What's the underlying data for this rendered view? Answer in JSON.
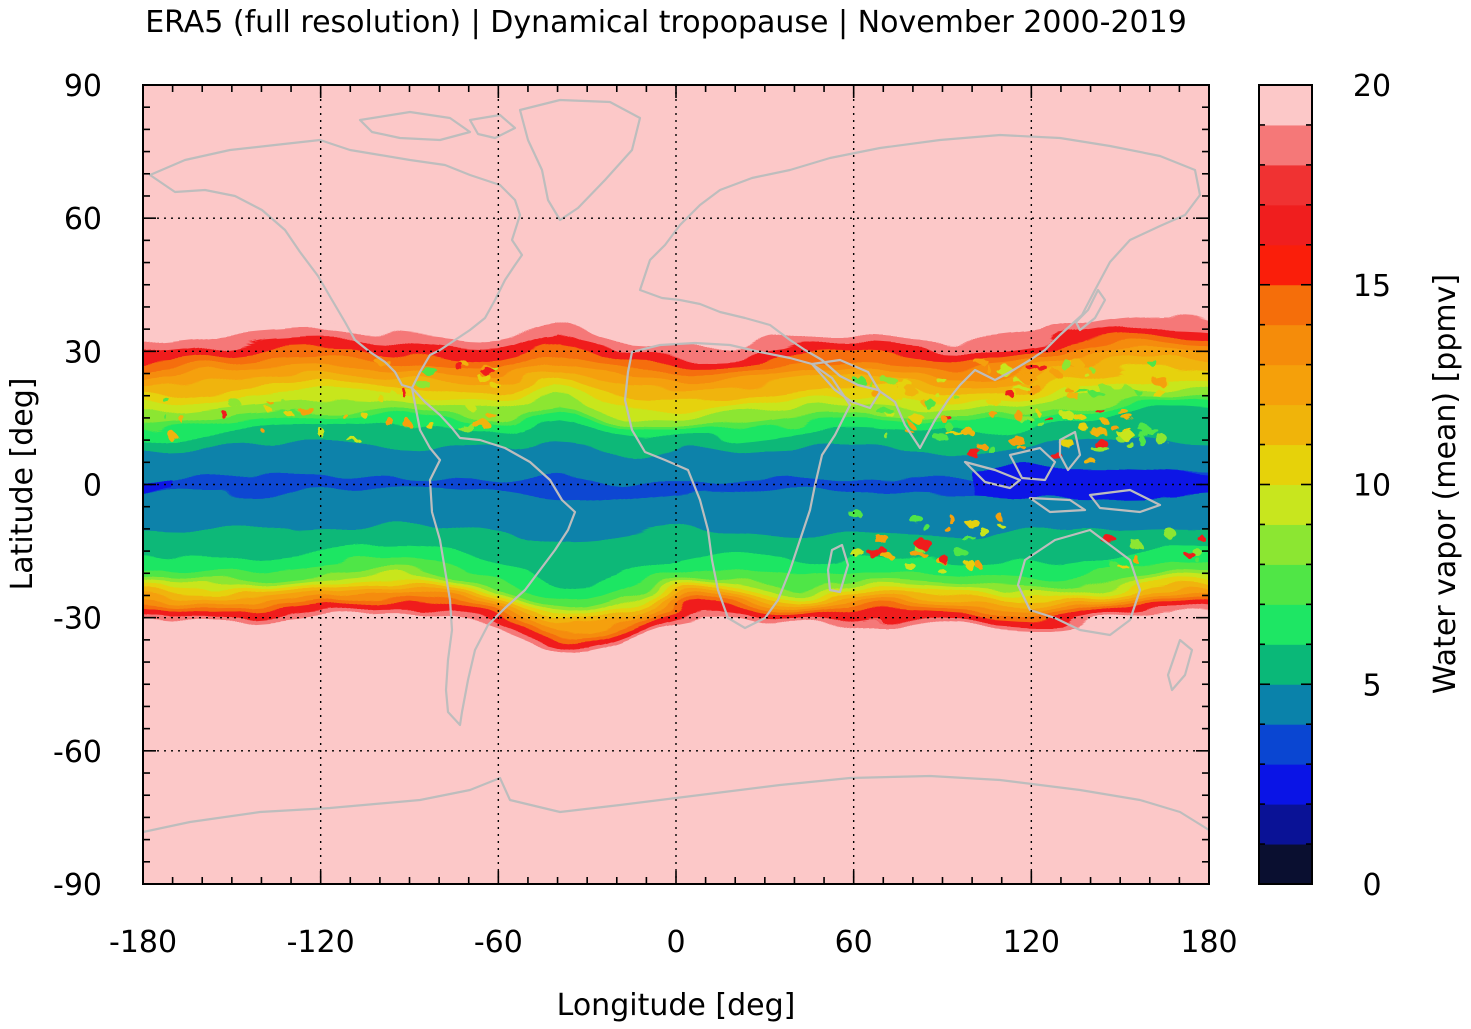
{
  "title": "ERA5 (full resolution) | Dynamical tropopause | November 2000-2019",
  "x_axis": {
    "label": "Longitude [deg]",
    "range": [
      -180,
      180
    ],
    "ticks": [
      "-180",
      "-120",
      "-60",
      "0",
      "60",
      "120",
      "180"
    ]
  },
  "y_axis": {
    "label": "Latitude [deg]",
    "range": [
      -90,
      90
    ],
    "ticks": [
      "90",
      "60",
      "30",
      "0",
      "-30",
      "-60",
      "-90"
    ]
  },
  "colorbar": {
    "label": "Water vapor (mean) [ppmv]",
    "range": [
      0,
      20
    ],
    "ticks": [
      "20",
      "15",
      "10",
      "5",
      "0"
    ],
    "colors": [
      "#0a0f30",
      "#0a1296",
      "#0a14e6",
      "#0a46d2",
      "#0a82aa",
      "#0ab878",
      "#1ee664",
      "#50e646",
      "#8ce632",
      "#c8e61e",
      "#e6d20a",
      "#f0b40a",
      "#f5a00a",
      "#f58c0a",
      "#f56e0a",
      "#fa1e0a",
      "#f01e1e",
      "#f03232",
      "#f57878",
      "#fcc8c8"
    ]
  },
  "map": {
    "background_color": "#fcc8c8",
    "coastline_color": "#bdbdbd",
    "grid": true
  }
}
